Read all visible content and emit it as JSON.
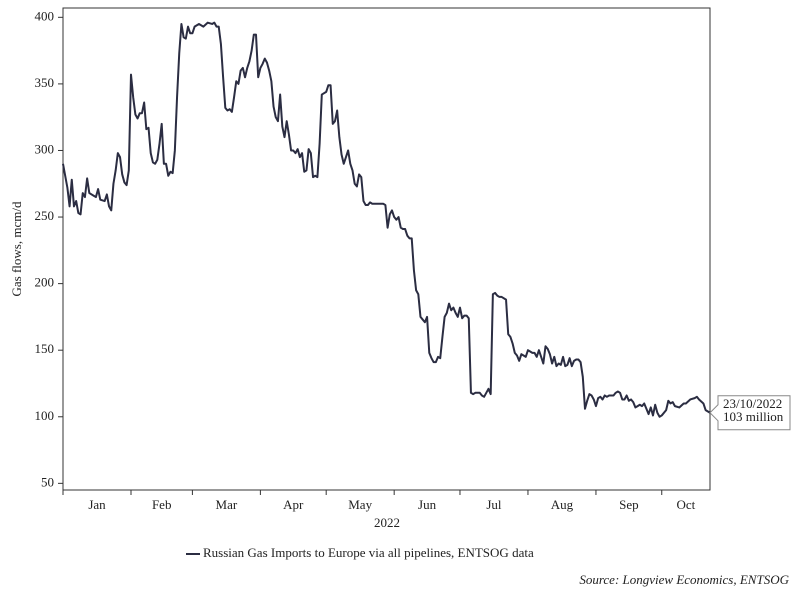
{
  "chart_data": {
    "type": "line",
    "y_label": "Gas flows, mcm/d",
    "x_label": "2022",
    "source": "Source: Longview Economics, ENTSOG",
    "annotation": [
      "23/10/2022",
      "103 million"
    ],
    "ylim": [
      45,
      407
    ],
    "yticks": [
      50,
      100,
      150,
      200,
      250,
      300,
      350,
      400
    ],
    "xlim": [
      "2022-01-01",
      "2022-10-23"
    ],
    "xticks": [
      {
        "value": "2022-01-01",
        "label": "Jan"
      },
      {
        "value": "2022-02-01",
        "label": "Feb"
      },
      {
        "value": "2022-03-01",
        "label": "Mar"
      },
      {
        "value": "2022-04-01",
        "label": "Apr"
      },
      {
        "value": "2022-05-01",
        "label": "May"
      },
      {
        "value": "2022-06-01",
        "label": "Jun"
      },
      {
        "value": "2022-07-01",
        "label": "Jul"
      },
      {
        "value": "2022-08-01",
        "label": "Aug"
      },
      {
        "value": "2022-09-01",
        "label": "Sep"
      },
      {
        "value": "2022-10-01",
        "label": "Oct"
      }
    ],
    "x": [
      "2022-01-01",
      "2022-01-03",
      "2022-01-04",
      "2022-01-05",
      "2022-01-06",
      "2022-01-07",
      "2022-01-08",
      "2022-01-09",
      "2022-01-10",
      "2022-01-11",
      "2022-01-12",
      "2022-01-13",
      "2022-01-15",
      "2022-01-16",
      "2022-01-17",
      "2022-01-18",
      "2022-01-20",
      "2022-01-21",
      "2022-01-22",
      "2022-01-23",
      "2022-01-24",
      "2022-01-25",
      "2022-01-26",
      "2022-01-27",
      "2022-01-28",
      "2022-01-29",
      "2022-01-30",
      "2022-01-31",
      "2022-02-01",
      "2022-02-02",
      "2022-02-03",
      "2022-02-04",
      "2022-02-05",
      "2022-02-06",
      "2022-02-07",
      "2022-02-08",
      "2022-02-09",
      "2022-02-10",
      "2022-02-11",
      "2022-02-12",
      "2022-02-13",
      "2022-02-14",
      "2022-02-15",
      "2022-02-16",
      "2022-02-17",
      "2022-02-18",
      "2022-02-19",
      "2022-02-20",
      "2022-02-21",
      "2022-02-22",
      "2022-02-23",
      "2022-02-24",
      "2022-02-25",
      "2022-02-26",
      "2022-02-27",
      "2022-02-28",
      "2022-03-01",
      "2022-03-02",
      "2022-03-04",
      "2022-03-06",
      "2022-03-08",
      "2022-03-10",
      "2022-03-11",
      "2022-03-12",
      "2022-03-13",
      "2022-03-14",
      "2022-03-15",
      "2022-03-16",
      "2022-03-17",
      "2022-03-18",
      "2022-03-19",
      "2022-03-20",
      "2022-03-21",
      "2022-03-22",
      "2022-03-23",
      "2022-03-24",
      "2022-03-25",
      "2022-03-26",
      "2022-03-27",
      "2022-03-28",
      "2022-03-29",
      "2022-03-30",
      "2022-03-31",
      "2022-04-01",
      "2022-04-02",
      "2022-04-03",
      "2022-04-04",
      "2022-04-05",
      "2022-04-06",
      "2022-04-07",
      "2022-04-08",
      "2022-04-09",
      "2022-04-10",
      "2022-04-11",
      "2022-04-12",
      "2022-04-13",
      "2022-04-14",
      "2022-04-15",
      "2022-04-16",
      "2022-04-17",
      "2022-04-18",
      "2022-04-19",
      "2022-04-20",
      "2022-04-21",
      "2022-04-22",
      "2022-04-23",
      "2022-04-24",
      "2022-04-25",
      "2022-04-26",
      "2022-04-27",
      "2022-04-28",
      "2022-04-29",
      "2022-05-01",
      "2022-05-02",
      "2022-05-03",
      "2022-05-04",
      "2022-05-05",
      "2022-05-06",
      "2022-05-07",
      "2022-05-08",
      "2022-05-09",
      "2022-05-10",
      "2022-05-11",
      "2022-05-12",
      "2022-05-13",
      "2022-05-14",
      "2022-05-15",
      "2022-05-16",
      "2022-05-17",
      "2022-05-18",
      "2022-05-19",
      "2022-05-20",
      "2022-05-21",
      "2022-05-22",
      "2022-05-23",
      "2022-05-25",
      "2022-05-27",
      "2022-05-28",
      "2022-05-29",
      "2022-05-30",
      "2022-05-31",
      "2022-06-01",
      "2022-06-02",
      "2022-06-03",
      "2022-06-04",
      "2022-06-05",
      "2022-06-06",
      "2022-06-07",
      "2022-06-08",
      "2022-06-09",
      "2022-06-10",
      "2022-06-11",
      "2022-06-12",
      "2022-06-13",
      "2022-06-14",
      "2022-06-15",
      "2022-06-16",
      "2022-06-17",
      "2022-06-18",
      "2022-06-19",
      "2022-06-20",
      "2022-06-21",
      "2022-06-22",
      "2022-06-23",
      "2022-06-24",
      "2022-06-25",
      "2022-06-26",
      "2022-06-27",
      "2022-06-28",
      "2022-06-29",
      "2022-06-30",
      "2022-07-01",
      "2022-07-02",
      "2022-07-03",
      "2022-07-04",
      "2022-07-05",
      "2022-07-06",
      "2022-07-07",
      "2022-07-08",
      "2022-07-10",
      "2022-07-11",
      "2022-07-12",
      "2022-07-13",
      "2022-07-14",
      "2022-07-15",
      "2022-07-16",
      "2022-07-17",
      "2022-07-18",
      "2022-07-19",
      "2022-07-20",
      "2022-07-22",
      "2022-07-23",
      "2022-07-24",
      "2022-07-25",
      "2022-07-26",
      "2022-07-27",
      "2022-07-28",
      "2022-07-29",
      "2022-07-30",
      "2022-07-31",
      "2022-08-01",
      "2022-08-02",
      "2022-08-03",
      "2022-08-04",
      "2022-08-05",
      "2022-08-06",
      "2022-08-07",
      "2022-08-08",
      "2022-08-09",
      "2022-08-10",
      "2022-08-11",
      "2022-08-12",
      "2022-08-13",
      "2022-08-14",
      "2022-08-15",
      "2022-08-16",
      "2022-08-17",
      "2022-08-18",
      "2022-08-19",
      "2022-08-20",
      "2022-08-21",
      "2022-08-22",
      "2022-08-23",
      "2022-08-24",
      "2022-08-25",
      "2022-08-26",
      "2022-08-27",
      "2022-08-28",
      "2022-08-29",
      "2022-08-30",
      "2022-08-31",
      "2022-09-01",
      "2022-09-02",
      "2022-09-03",
      "2022-09-04",
      "2022-09-05",
      "2022-09-06",
      "2022-09-07",
      "2022-09-08",
      "2022-09-09",
      "2022-09-10",
      "2022-09-11",
      "2022-09-12",
      "2022-09-13",
      "2022-09-14",
      "2022-09-15",
      "2022-09-16",
      "2022-09-17",
      "2022-09-18",
      "2022-09-19",
      "2022-09-20",
      "2022-09-21",
      "2022-09-22",
      "2022-09-23",
      "2022-09-24",
      "2022-09-25",
      "2022-09-26",
      "2022-09-27",
      "2022-09-28",
      "2022-09-29",
      "2022-09-30",
      "2022-10-01",
      "2022-10-03",
      "2022-10-04",
      "2022-10-05",
      "2022-10-06",
      "2022-10-07",
      "2022-10-09",
      "2022-10-11",
      "2022-10-12",
      "2022-10-14",
      "2022-10-16",
      "2022-10-17",
      "2022-10-18",
      "2022-10-20",
      "2022-10-21",
      "2022-10-23"
    ],
    "series": [
      {
        "name": "Russian Gas Imports to Europe via all pipelines, ENTSOG data",
        "color": "#2b2d42",
        "values": [
          290,
          272,
          258,
          278,
          258,
          262,
          253,
          252,
          268,
          265,
          279,
          268,
          266,
          265,
          271,
          263,
          262,
          267,
          258,
          255,
          275,
          285,
          298,
          295,
          282,
          276,
          274,
          285,
          357,
          340,
          327,
          324,
          328,
          328,
          336,
          316,
          317,
          298,
          291,
          290,
          293,
          305,
          320,
          290,
          290,
          281,
          284,
          283,
          300,
          340,
          373,
          395,
          385,
          384,
          393,
          388,
          388,
          393,
          395,
          393,
          396,
          395,
          396,
          393,
          393,
          380,
          355,
          332,
          330,
          331,
          329,
          340,
          352,
          350,
          360,
          362,
          355,
          362,
          367,
          375,
          387,
          387,
          355,
          362,
          365,
          369,
          366,
          360,
          352,
          333,
          325,
          322,
          342,
          318,
          310,
          322,
          312,
          300,
          300,
          298,
          301,
          295,
          298,
          284,
          285,
          301,
          298,
          280,
          281,
          280,
          305,
          342,
          344,
          349,
          349,
          320,
          322,
          330,
          310,
          297,
          290,
          295,
          300,
          290,
          285,
          275,
          273,
          282,
          280,
          262,
          259,
          259,
          261,
          260,
          260,
          260,
          260,
          259,
          242,
          252,
          255,
          250,
          248,
          250,
          242,
          241,
          241,
          236,
          234,
          234,
          210,
          195,
          192,
          175,
          173,
          171,
          175,
          148,
          144,
          141,
          141,
          145,
          144,
          160,
          175,
          178,
          185,
          180,
          182,
          178,
          175,
          182,
          174,
          176,
          176,
          174,
          118,
          117,
          118,
          118,
          116,
          115,
          118,
          121,
          117,
          192,
          193,
          191,
          190,
          190,
          188,
          162,
          160,
          155,
          148,
          146,
          142,
          147,
          146,
          145,
          150,
          149,
          148,
          148,
          145,
          150,
          145,
          140,
          153,
          151,
          147,
          140,
          145,
          138,
          140,
          139,
          145,
          138,
          139,
          144,
          138,
          142,
          143,
          143,
          141,
          130,
          106,
          112,
          117,
          116,
          113,
          108,
          114,
          115,
          113,
          116,
          115,
          116,
          116,
          116,
          118,
          119,
          118,
          113,
          113,
          116,
          112,
          113,
          111,
          107,
          108,
          109,
          108,
          110,
          106,
          102,
          107,
          101,
          109,
          103,
          100,
          101,
          105,
          112,
          110,
          111,
          108,
          107,
          110,
          110,
          113,
          114,
          115,
          113,
          110,
          105,
          103
        ]
      }
    ]
  }
}
